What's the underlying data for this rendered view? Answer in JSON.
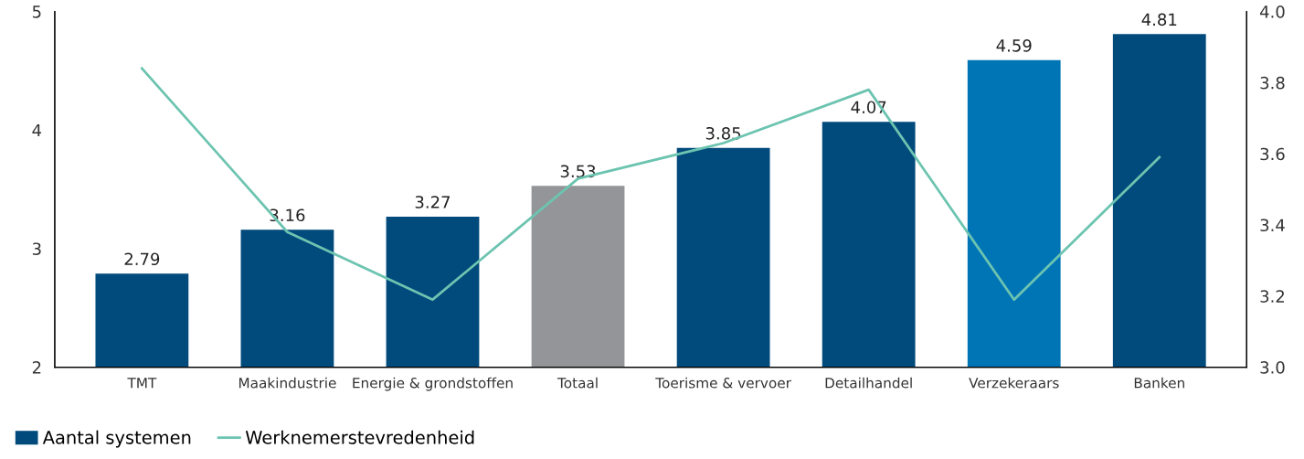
{
  "chart_data": {
    "type": "bar",
    "categories": [
      "TMT",
      "Maakindustrie",
      "Energie & grondstoffen",
      "Totaal",
      "Toerisme & vervoer",
      "Detailhandel",
      "Verzekeraars",
      "Banken"
    ],
    "series": [
      {
        "name": "Aantal systemen",
        "color": "#004a7c",
        "colors": [
          "#004a7c",
          "#004a7c",
          "#004a7c",
          "#939598",
          "#004a7c",
          "#004a7c",
          "#0075b6",
          "#004a7c"
        ],
        "values": [
          2.79,
          3.16,
          3.27,
          3.53,
          3.85,
          4.07,
          4.59,
          4.81
        ],
        "data_labels": true
      },
      {
        "name": "Werknemerstevredenheid",
        "type": "line",
        "axis": "y2",
        "color": "#6cc4b0",
        "values": [
          3.84,
          3.38,
          3.19,
          3.53,
          3.63,
          3.78,
          3.19,
          3.59
        ]
      }
    ],
    "ylim": [
      2,
      5
    ],
    "yticks": [
      2,
      3,
      4,
      5
    ],
    "y2lim": [
      3.0,
      4.0
    ],
    "y2ticks": [
      {
        "value": 3.0,
        "label": "3.0"
      },
      {
        "value": 3.2,
        "label": "3.2"
      },
      {
        "value": 3.4,
        "label": "3.4"
      },
      {
        "value": 3.6,
        "label": "3.6"
      },
      {
        "value": 3.8,
        "label": "3.8"
      },
      {
        "value": 4.0,
        "label": "4.0"
      }
    ],
    "grid": false,
    "legend": "bottom left",
    "marker": "none",
    "line_style": "solid"
  }
}
